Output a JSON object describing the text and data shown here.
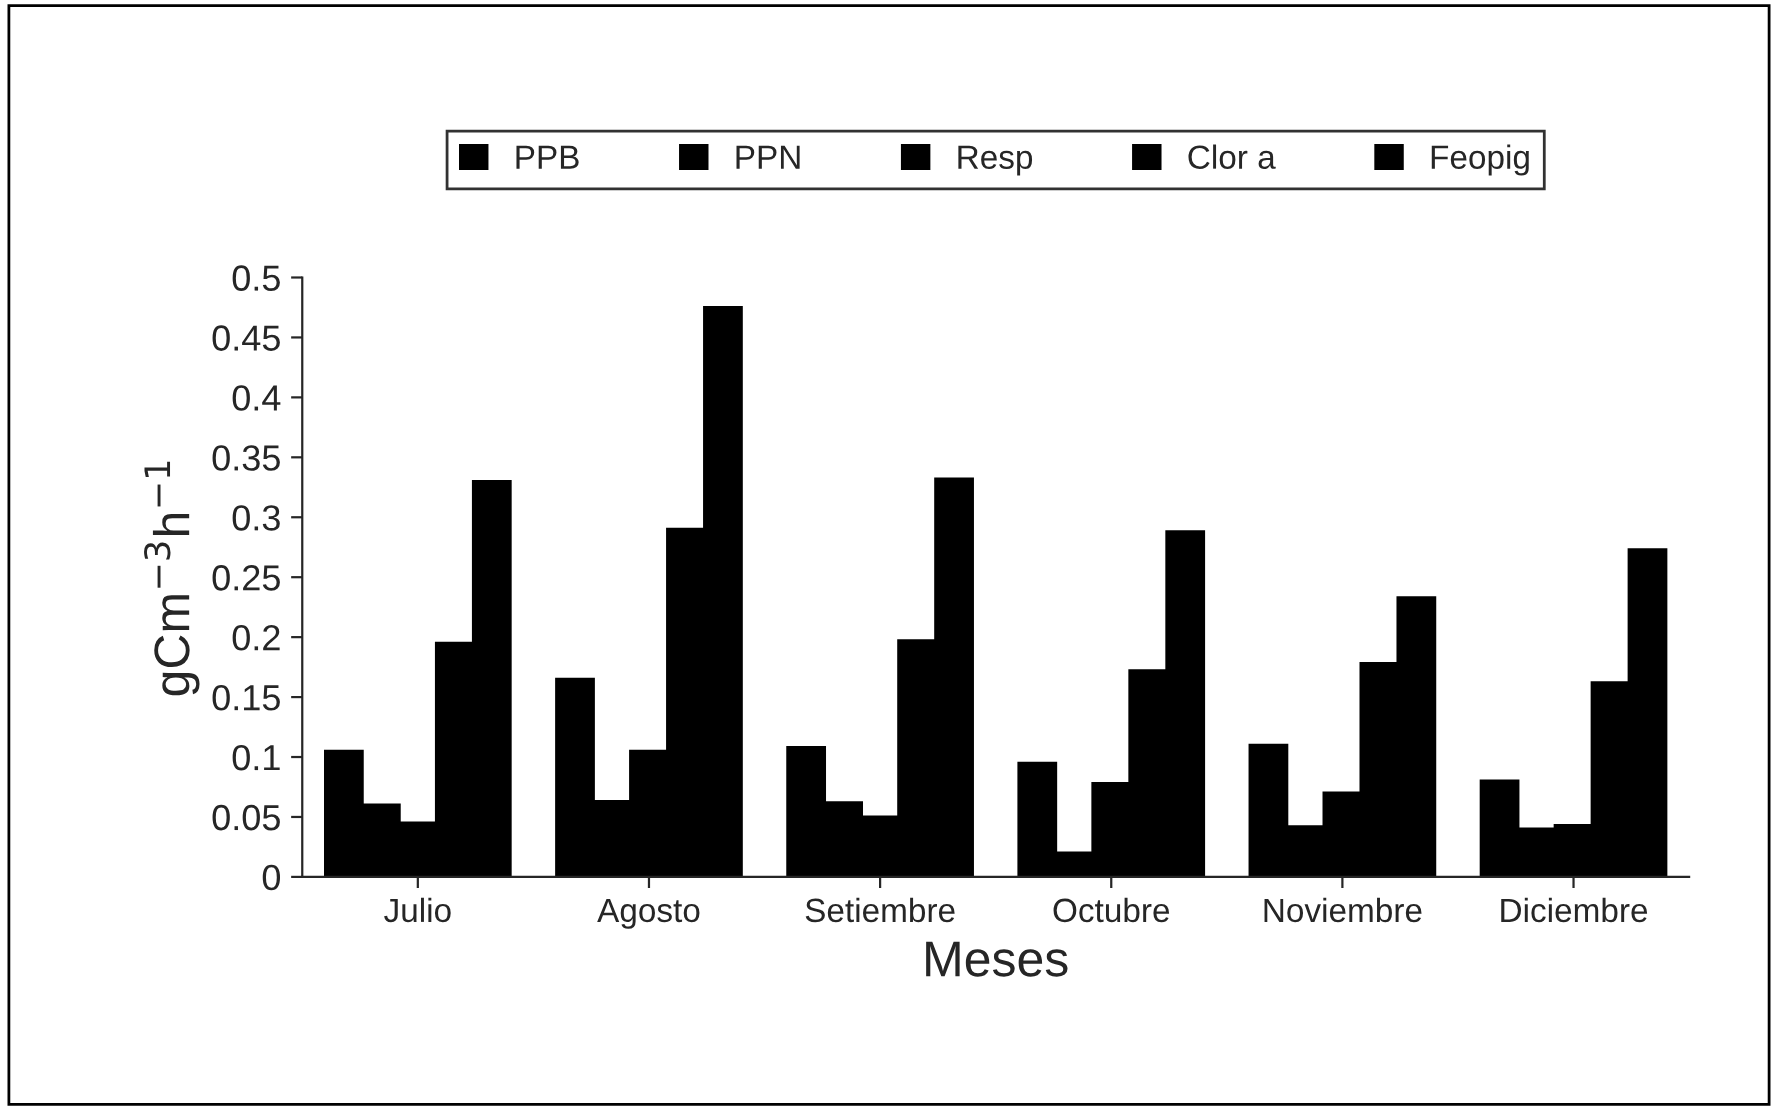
{
  "chart_data": {
    "type": "bar",
    "xlabel": "Meses",
    "ylabel": "gCm$^{−3}$h$^{−1}$",
    "categories": [
      "Julio",
      "Agosto",
      "Setiembre",
      "Octubre",
      "Noviembre",
      "Diciembre"
    ],
    "series": [
      {
        "name": "PPB",
        "color": "#000000",
        "values": [
          0.105,
          0.165,
          0.108,
          0.095,
          0.11,
          0.08
        ]
      },
      {
        "name": "PPN",
        "color": "#000000",
        "values": [
          0.06,
          0.063,
          0.062,
          0.02,
          0.042,
          0.04
        ]
      },
      {
        "name": "Resp",
        "color": "#000000",
        "values": [
          0.045,
          0.105,
          0.05,
          0.078,
          0.07,
          0.043
        ]
      },
      {
        "name": "Clor a",
        "color": "#000000",
        "values": [
          0.195,
          0.29,
          0.197,
          0.172,
          0.178,
          0.162
        ]
      },
      {
        "name": "Feopig",
        "color": "#000000",
        "values": [
          0.33,
          0.475,
          0.332,
          0.288,
          0.233,
          0.273
        ]
      }
    ],
    "ylim": [
      0,
      0.5
    ],
    "yticks": [
      0,
      0.05,
      0.1,
      0.15,
      0.2,
      0.25,
      0.3,
      0.35,
      0.4,
      0.45,
      0.5
    ],
    "grid": false,
    "legend": "top"
  }
}
